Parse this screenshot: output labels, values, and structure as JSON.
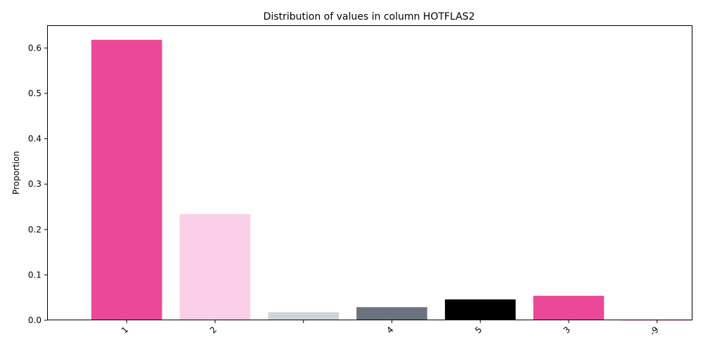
{
  "chart_data": {
    "type": "bar",
    "title": "Distribution of values in column HOTFLAS2",
    "xlabel": "",
    "ylabel": "Proportion",
    "categories": [
      "1",
      "2",
      "",
      "4",
      "5",
      "3",
      "-9"
    ],
    "values": [
      0.618,
      0.234,
      0.018,
      0.029,
      0.046,
      0.054,
      0.001
    ],
    "colors": [
      "#ec4899",
      "#fbcfe8",
      "#d1d5db",
      "#6b7280",
      "#000000",
      "#ec4899",
      "#ec4899"
    ],
    "ylim": [
      0,
      0.65
    ],
    "yticks": [
      "0.0",
      "0.1",
      "0.2",
      "0.3",
      "0.4",
      "0.5",
      "0.6"
    ],
    "grid": false,
    "legend": "none"
  }
}
